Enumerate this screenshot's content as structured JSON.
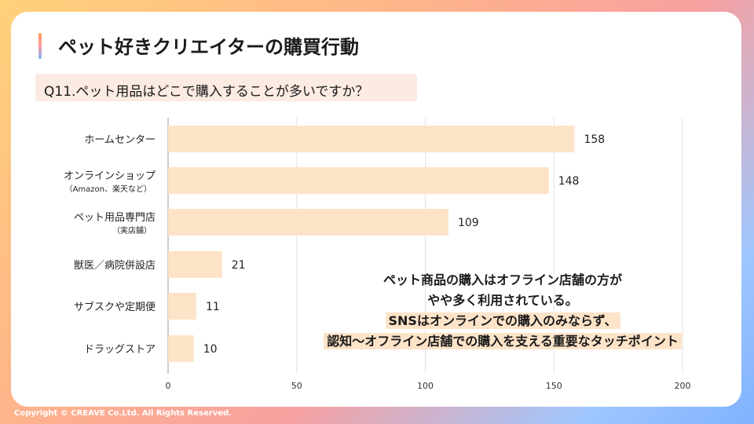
{
  "header": {
    "title": "ペット好きクリエイターの購買行動",
    "question": "Q11.ペット用品はどこで購入することが多いですか？"
  },
  "chart_data": {
    "type": "bar",
    "orientation": "horizontal",
    "categories": [
      [
        "ホームセンター"
      ],
      [
        "オンラインショップ",
        "（Amazon、楽天など）"
      ],
      [
        "ペット用品専門店",
        "（実店舗）"
      ],
      [
        "獣医／病院併設店"
      ],
      [
        "サブスクや定期便"
      ],
      [
        "ドラッグストア"
      ]
    ],
    "values": [
      158,
      148,
      109,
      21,
      11,
      10
    ],
    "xlim": [
      0,
      200
    ],
    "xticks": [
      0,
      50,
      100,
      150,
      200
    ],
    "grid": true,
    "bar_color": "#fde3c8"
  },
  "callout": {
    "line1": "ペット商品の購入はオフライン店舗の方が",
    "line2": "やや多く利用されている。",
    "line3": "SNSはオンラインでの購入のみならず、",
    "line4": "認知〜オフライン店舗での購入を支える重要なタッチポイント"
  },
  "footer": {
    "copyright": "Copyright © CREAVE Co.Ltd. All Rights Reserved."
  }
}
